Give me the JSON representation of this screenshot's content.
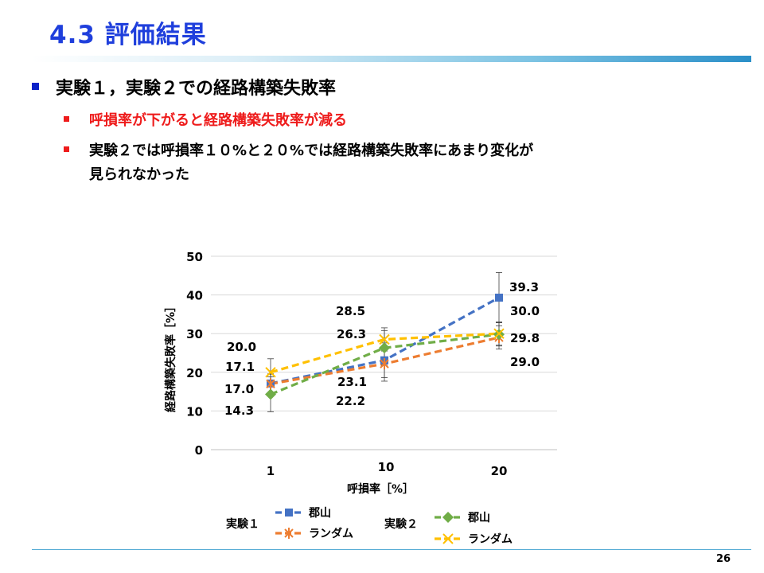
{
  "slide": {
    "title": "4.3 評価結果",
    "page_number": "26"
  },
  "bullets": {
    "main": "実験１，実験２での経路構築失敗率",
    "sub1": "呼損率が下がると経路構築失敗率が減る",
    "sub2_line1": "実験２では呼損率１０%と２０%では経路構築失敗率にあまり変化が",
    "sub2_line2": "見られなかった"
  },
  "colors": {
    "title": "#1f3fdc",
    "bullet_main": "#0a22c8",
    "highlight": "#ee1c1c",
    "series_exp1_koriyama": "#4472c4",
    "series_exp1_random": "#ed7d31",
    "series_exp2_koriyama": "#70ad47",
    "series_exp2_random": "#ffc000"
  },
  "chart_data": {
    "type": "line",
    "categories": [
      "1",
      "10",
      "20"
    ],
    "xlabel": "呼損率［%］",
    "ylabel": "経路構築失敗率［%］",
    "ylim": [
      0,
      50
    ],
    "yticks": [
      "0",
      "10",
      "20",
      "30",
      "40",
      "50"
    ],
    "grid": true,
    "legend_placement": "bottom",
    "legend_groups": [
      {
        "label": "実験１",
        "entries": [
          "郡山",
          "ランダム"
        ]
      },
      {
        "label": "実験２",
        "entries": [
          "郡山",
          "ランダム"
        ]
      }
    ],
    "series": [
      {
        "group": "実験１",
        "name": "郡山",
        "values": [
          17.1,
          23.1,
          39.3
        ],
        "errors": [
          2.5,
          4.5,
          6.5
        ],
        "marker": "square",
        "color": "#4472c4",
        "labels": [
          "17.1",
          "23.1",
          "39.3"
        ]
      },
      {
        "group": "実験１",
        "name": "ランダム",
        "values": [
          17.0,
          22.2,
          29.0
        ],
        "errors": [
          2.5,
          4.5,
          3.0
        ],
        "marker": "star",
        "color": "#ed7d31",
        "labels": [
          "17.0",
          "22.2",
          "29.0"
        ]
      },
      {
        "group": "実験２",
        "name": "郡山",
        "values": [
          14.3,
          26.3,
          29.8
        ],
        "errors": [
          4.5,
          4.5,
          3.0
        ],
        "marker": "diamond",
        "color": "#70ad47",
        "labels": [
          "14.3",
          "26.3",
          "29.8"
        ]
      },
      {
        "group": "実験２",
        "name": "ランダム",
        "values": [
          20.0,
          28.5,
          30.0
        ],
        "errors": [
          3.5,
          3.0,
          3.0
        ],
        "marker": "x",
        "color": "#ffc000",
        "labels": [
          "20.0",
          "28.5",
          "30.0"
        ]
      }
    ]
  }
}
